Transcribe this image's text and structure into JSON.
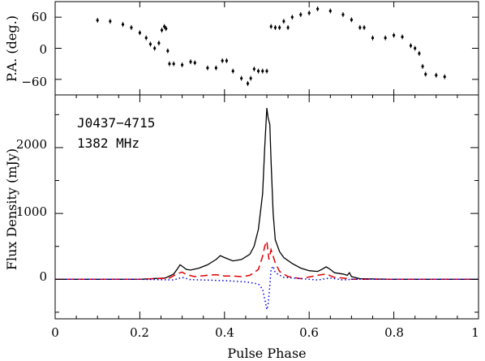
{
  "chart_data": [
    {
      "type": "scatter",
      "panel": "position-angle",
      "title": "",
      "xlabel": "",
      "ylabel": "P.A. (deg.)",
      "xlim": [
        0,
        1
      ],
      "ylim": [
        -90,
        90
      ],
      "x_ticks": [
        0,
        0.2,
        0.4,
        0.6,
        0.8,
        1
      ],
      "y_ticks": [
        -60,
        0,
        60
      ],
      "y_tick_labels": [
        "−60",
        "0",
        "60"
      ],
      "grid": false,
      "error_bars": true,
      "series": [
        {
          "color": "#000000",
          "points": [
            [
              0.1,
              54
            ],
            [
              0.13,
              52
            ],
            [
              0.16,
              46
            ],
            [
              0.18,
              40
            ],
            [
              0.2,
              30
            ],
            [
              0.215,
              20
            ],
            [
              0.225,
              8
            ],
            [
              0.235,
              0
            ],
            [
              0.245,
              10
            ],
            [
              0.252,
              35
            ],
            [
              0.258,
              42
            ],
            [
              0.262,
              38
            ],
            [
              0.266,
              -5
            ],
            [
              0.27,
              -30
            ],
            [
              0.28,
              -30
            ],
            [
              0.3,
              -32
            ],
            [
              0.32,
              -26
            ],
            [
              0.33,
              -28
            ],
            [
              0.36,
              -38
            ],
            [
              0.38,
              -38
            ],
            [
              0.395,
              -24
            ],
            [
              0.405,
              -24
            ],
            [
              0.42,
              -44
            ],
            [
              0.44,
              -58
            ],
            [
              0.455,
              -68
            ],
            [
              0.462,
              -58
            ],
            [
              0.47,
              -40
            ],
            [
              0.48,
              -44
            ],
            [
              0.49,
              -44
            ],
            [
              0.5,
              -44
            ],
            [
              0.51,
              42
            ],
            [
              0.52,
              40
            ],
            [
              0.53,
              40
            ],
            [
              0.54,
              52
            ],
            [
              0.55,
              40
            ],
            [
              0.56,
              60
            ],
            [
              0.58,
              65
            ],
            [
              0.6,
              68
            ],
            [
              0.62,
              76
            ],
            [
              0.65,
              72
            ],
            [
              0.68,
              65
            ],
            [
              0.7,
              55
            ],
            [
              0.72,
              40
            ],
            [
              0.73,
              40
            ],
            [
              0.75,
              20
            ],
            [
              0.78,
              20
            ],
            [
              0.8,
              25
            ],
            [
              0.82,
              22
            ],
            [
              0.84,
              5
            ],
            [
              0.85,
              0
            ],
            [
              0.86,
              -10
            ],
            [
              0.868,
              -35
            ],
            [
              0.875,
              -50
            ],
            [
              0.9,
              -52
            ],
            [
              0.92,
              -55
            ]
          ]
        }
      ]
    },
    {
      "type": "line",
      "panel": "flux-density",
      "title": "",
      "xlabel": "Pulse Phase",
      "ylabel": "Flux Density (mJy)",
      "xlim": [
        0,
        1
      ],
      "ylim": [
        -600,
        2800
      ],
      "x_ticks": [
        0,
        0.2,
        0.4,
        0.6,
        0.8,
        1
      ],
      "x_tick_labels": [
        "0",
        "0.2",
        "0.4",
        "0.6",
        "0.8",
        "1"
      ],
      "y_ticks": [
        0,
        1000,
        2000
      ],
      "grid": false,
      "legend": "none",
      "annotations": [
        "J0437−4715",
        "1382 MHz"
      ],
      "series": [
        {
          "style": "solid",
          "color": "#000000",
          "points": [
            [
              0,
              0
            ],
            [
              0.1,
              0
            ],
            [
              0.2,
              0
            ],
            [
              0.26,
              20
            ],
            [
              0.28,
              80
            ],
            [
              0.29,
              170
            ],
            [
              0.295,
              220
            ],
            [
              0.3,
              200
            ],
            [
              0.31,
              150
            ],
            [
              0.32,
              140
            ],
            [
              0.34,
              170
            ],
            [
              0.36,
              220
            ],
            [
              0.38,
              300
            ],
            [
              0.39,
              360
            ],
            [
              0.4,
              330
            ],
            [
              0.42,
              280
            ],
            [
              0.44,
              300
            ],
            [
              0.46,
              380
            ],
            [
              0.47,
              500
            ],
            [
              0.48,
              760
            ],
            [
              0.49,
              1300
            ],
            [
              0.495,
              2000
            ],
            [
              0.5,
              2600
            ],
            [
              0.503,
              2450
            ],
            [
              0.507,
              2350
            ],
            [
              0.51,
              1800
            ],
            [
              0.515,
              1000
            ],
            [
              0.52,
              600
            ],
            [
              0.53,
              420
            ],
            [
              0.54,
              330
            ],
            [
              0.56,
              240
            ],
            [
              0.58,
              170
            ],
            [
              0.6,
              130
            ],
            [
              0.62,
              120
            ],
            [
              0.63,
              150
            ],
            [
              0.64,
              190
            ],
            [
              0.65,
              150
            ],
            [
              0.66,
              100
            ],
            [
              0.68,
              80
            ],
            [
              0.69,
              60
            ],
            [
              0.695,
              100
            ],
            [
              0.7,
              40
            ],
            [
              0.72,
              10
            ],
            [
              0.8,
              0
            ],
            [
              0.9,
              0
            ],
            [
              1.0,
              0
            ]
          ]
        },
        {
          "style": "dashed",
          "color": "#e00000",
          "points": [
            [
              0,
              0
            ],
            [
              0.2,
              0
            ],
            [
              0.27,
              20
            ],
            [
              0.29,
              90
            ],
            [
              0.3,
              110
            ],
            [
              0.31,
              70
            ],
            [
              0.33,
              40
            ],
            [
              0.36,
              60
            ],
            [
              0.38,
              70
            ],
            [
              0.4,
              50
            ],
            [
              0.42,
              50
            ],
            [
              0.44,
              40
            ],
            [
              0.46,
              60
            ],
            [
              0.48,
              150
            ],
            [
              0.49,
              350
            ],
            [
              0.495,
              500
            ],
            [
              0.5,
              580
            ],
            [
              0.505,
              300
            ],
            [
              0.51,
              450
            ],
            [
              0.515,
              350
            ],
            [
              0.52,
              250
            ],
            [
              0.53,
              120
            ],
            [
              0.55,
              40
            ],
            [
              0.58,
              10
            ],
            [
              0.62,
              60
            ],
            [
              0.64,
              80
            ],
            [
              0.66,
              30
            ],
            [
              0.68,
              20
            ],
            [
              0.7,
              0
            ],
            [
              0.8,
              0
            ],
            [
              1.0,
              0
            ]
          ]
        },
        {
          "style": "dotted",
          "color": "#0000dd",
          "points": [
            [
              0,
              0
            ],
            [
              0.2,
              0
            ],
            [
              0.28,
              -10
            ],
            [
              0.3,
              30
            ],
            [
              0.32,
              -5
            ],
            [
              0.4,
              -20
            ],
            [
              0.45,
              -40
            ],
            [
              0.48,
              -70
            ],
            [
              0.49,
              -150
            ],
            [
              0.495,
              -300
            ],
            [
              0.5,
              -460
            ],
            [
              0.503,
              -380
            ],
            [
              0.507,
              -100
            ],
            [
              0.51,
              150
            ],
            [
              0.515,
              200
            ],
            [
              0.52,
              100
            ],
            [
              0.54,
              30
            ],
            [
              0.58,
              10
            ],
            [
              0.62,
              -10
            ],
            [
              0.65,
              20
            ],
            [
              0.68,
              -10
            ],
            [
              0.7,
              0
            ],
            [
              0.8,
              0
            ],
            [
              1.0,
              0
            ]
          ]
        }
      ]
    }
  ]
}
